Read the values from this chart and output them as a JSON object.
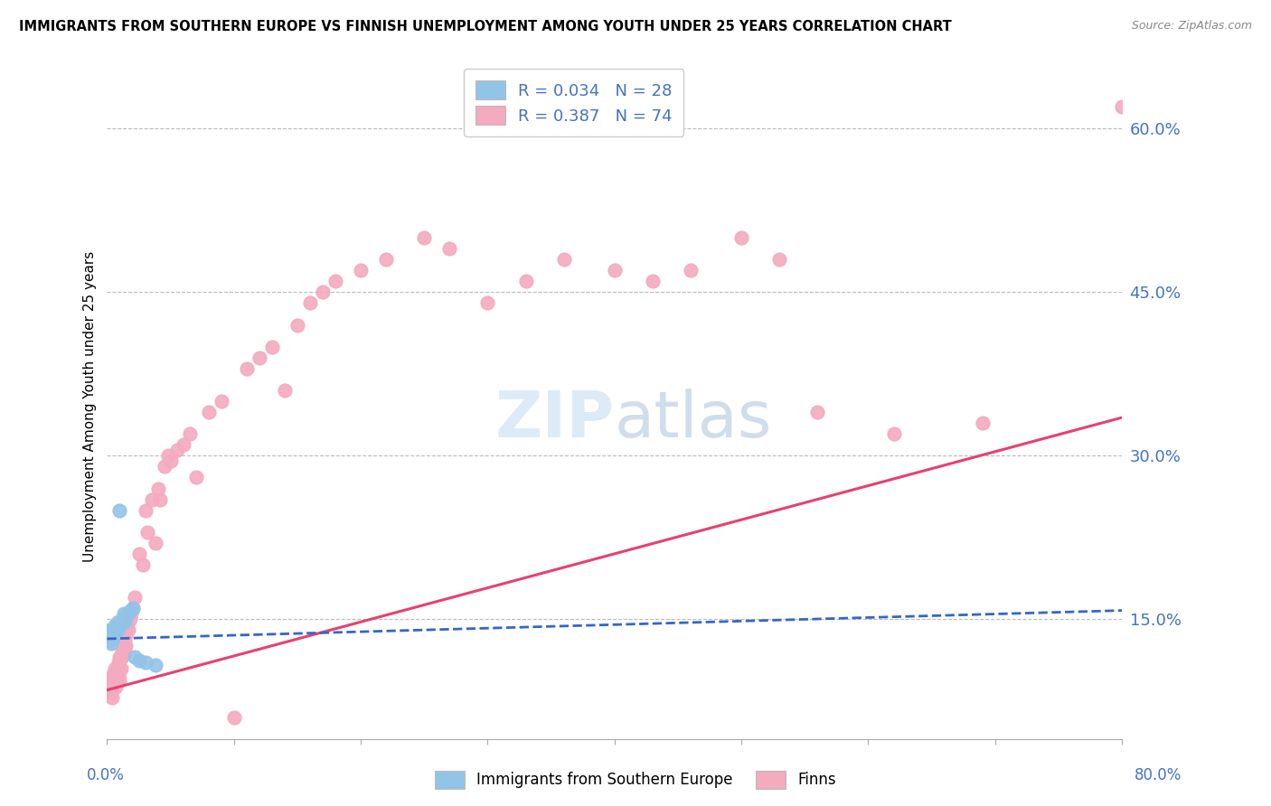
{
  "title": "IMMIGRANTS FROM SOUTHERN EUROPE VS FINNISH UNEMPLOYMENT AMONG YOUTH UNDER 25 YEARS CORRELATION CHART",
  "source": "Source: ZipAtlas.com",
  "ylabel": "Unemployment Among Youth under 25 years",
  "right_yticks": [
    0.15,
    0.3,
    0.45,
    0.6
  ],
  "right_yticklabels": [
    "15.0%",
    "30.0%",
    "45.0%",
    "60.0%"
  ],
  "legend1_label": "R = 0.034   N = 28",
  "legend2_label": "R = 0.387   N = 74",
  "legend_bottom1": "Immigrants from Southern Europe",
  "legend_bottom2": "Finns",
  "blue_color": "#92C4E8",
  "pink_color": "#F4AABF",
  "blue_line_color": "#3366CC",
  "pink_line_color": "#E84070",
  "label_color": "#4472C4",
  "xlim": [
    0.0,
    0.8
  ],
  "ylim": [
    0.04,
    0.65
  ],
  "blue_x": [
    0.001,
    0.002,
    0.002,
    0.003,
    0.003,
    0.004,
    0.004,
    0.005,
    0.005,
    0.006,
    0.006,
    0.007,
    0.007,
    0.008,
    0.009,
    0.01,
    0.011,
    0.012,
    0.013,
    0.014,
    0.015,
    0.016,
    0.018,
    0.02,
    0.022,
    0.025,
    0.03,
    0.038
  ],
  "blue_y": [
    0.135,
    0.13,
    0.14,
    0.128,
    0.135,
    0.132,
    0.138,
    0.133,
    0.14,
    0.136,
    0.142,
    0.138,
    0.145,
    0.14,
    0.148,
    0.25,
    0.145,
    0.15,
    0.155,
    0.148,
    0.152,
    0.155,
    0.158,
    0.16,
    0.115,
    0.112,
    0.11,
    0.108
  ],
  "pink_x": [
    0.001,
    0.002,
    0.003,
    0.003,
    0.004,
    0.004,
    0.005,
    0.005,
    0.006,
    0.006,
    0.007,
    0.007,
    0.008,
    0.008,
    0.009,
    0.009,
    0.01,
    0.01,
    0.011,
    0.012,
    0.012,
    0.013,
    0.013,
    0.014,
    0.015,
    0.015,
    0.016,
    0.017,
    0.018,
    0.019,
    0.02,
    0.022,
    0.025,
    0.028,
    0.03,
    0.032,
    0.035,
    0.038,
    0.04,
    0.042,
    0.045,
    0.048,
    0.05,
    0.055,
    0.06,
    0.065,
    0.07,
    0.08,
    0.09,
    0.1,
    0.11,
    0.12,
    0.13,
    0.14,
    0.15,
    0.16,
    0.17,
    0.18,
    0.2,
    0.22,
    0.25,
    0.27,
    0.3,
    0.33,
    0.36,
    0.4,
    0.43,
    0.46,
    0.5,
    0.53,
    0.56,
    0.62,
    0.69,
    0.8
  ],
  "pink_y": [
    0.09,
    0.085,
    0.095,
    0.082,
    0.078,
    0.088,
    0.092,
    0.1,
    0.095,
    0.105,
    0.088,
    0.098,
    0.092,
    0.105,
    0.1,
    0.11,
    0.095,
    0.115,
    0.105,
    0.12,
    0.115,
    0.125,
    0.118,
    0.13,
    0.125,
    0.135,
    0.145,
    0.14,
    0.15,
    0.155,
    0.16,
    0.17,
    0.21,
    0.2,
    0.25,
    0.23,
    0.26,
    0.22,
    0.27,
    0.26,
    0.29,
    0.3,
    0.295,
    0.305,
    0.31,
    0.32,
    0.28,
    0.34,
    0.35,
    0.06,
    0.38,
    0.39,
    0.4,
    0.36,
    0.42,
    0.44,
    0.45,
    0.46,
    0.47,
    0.48,
    0.5,
    0.49,
    0.44,
    0.46,
    0.48,
    0.47,
    0.46,
    0.47,
    0.5,
    0.48,
    0.34,
    0.32,
    0.33,
    0.62
  ],
  "pink_trend_y0": 0.085,
  "pink_trend_y1": 0.335,
  "blue_trend_y0": 0.132,
  "blue_trend_y1": 0.158
}
